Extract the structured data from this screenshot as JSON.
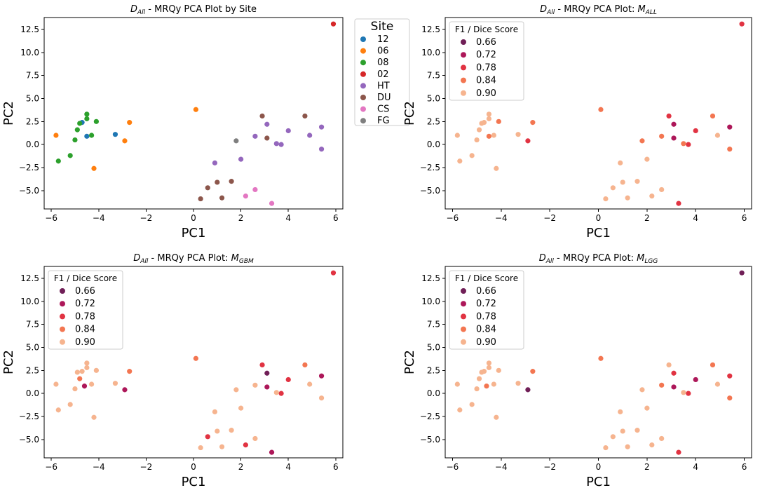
{
  "chart_data": [
    {
      "type": "scatter",
      "title_main": "D",
      "title_sub": "All",
      "title_rest": " - MRQy PCA Plot by Site",
      "title_var": "",
      "title_var_sub": "",
      "xlabel": "PC1",
      "ylabel": "PC2",
      "xlim": [
        -6.3,
        6.3
      ],
      "ylim": [
        -7.0,
        13.8
      ],
      "xticks": [
        -6,
        -4,
        -2,
        0,
        2,
        4,
        6
      ],
      "yticks": [
        -5.0,
        -2.5,
        0.0,
        2.5,
        5.0,
        7.5,
        10.0,
        12.5
      ],
      "ytick_labels": [
        "−5.0",
        "−2.5",
        "0.0",
        "2.5",
        "5.0",
        "7.5",
        "10.0",
        "12.5"
      ],
      "xtick_labels": [
        "−6",
        "−4",
        "−2",
        "0",
        "2",
        "4",
        "6"
      ],
      "legend": {
        "title": "Site",
        "placement": "outside-right",
        "entries": [
          {
            "label": "12",
            "color": "#1f77b4"
          },
          {
            "label": "06",
            "color": "#ff7f0e"
          },
          {
            "label": "08",
            "color": "#2ca02c"
          },
          {
            "label": "02",
            "color": "#d62728"
          },
          {
            "label": "HT",
            "color": "#9467bd"
          },
          {
            "label": "DU",
            "color": "#8c564b"
          },
          {
            "label": "CS",
            "color": "#e377c2"
          },
          {
            "label": "FG",
            "color": "#7f7f7f"
          }
        ]
      },
      "series": [
        {
          "name": "12",
          "color": "#1f77b4",
          "x": [
            -4.5,
            -3.3,
            -4.7
          ],
          "y": [
            0.9,
            1.1,
            2.4
          ]
        },
        {
          "name": "06",
          "color": "#ff7f0e",
          "x": [
            -5.8,
            -4.2,
            -2.9,
            -2.7,
            0.1
          ],
          "y": [
            1.0,
            -2.6,
            0.4,
            2.4,
            3.8
          ]
        },
        {
          "name": "08",
          "color": "#2ca02c",
          "x": [
            -5.7,
            -5.2,
            -5.0,
            -4.9,
            -4.8,
            -4.5,
            -4.5,
            -4.3,
            -4.1
          ],
          "y": [
            -1.8,
            -1.2,
            0.5,
            1.6,
            2.3,
            2.8,
            3.3,
            1.0,
            2.5
          ]
        },
        {
          "name": "02",
          "color": "#d62728",
          "x": [
            5.9
          ],
          "y": [
            13.1
          ]
        },
        {
          "name": "HT",
          "color": "#9467bd",
          "x": [
            0.9,
            2.0,
            2.6,
            3.1,
            3.5,
            3.7,
            4.0,
            4.9,
            5.4,
            5.4
          ],
          "y": [
            -2.0,
            -1.6,
            0.9,
            2.2,
            0.1,
            0.0,
            1.5,
            1.0,
            1.9,
            -0.5
          ]
        },
        {
          "name": "DU",
          "color": "#8c564b",
          "x": [
            0.3,
            0.6,
            1.0,
            1.2,
            1.6,
            2.9,
            3.1,
            4.7
          ],
          "y": [
            -5.9,
            -4.7,
            -4.1,
            -5.8,
            -4.0,
            3.1,
            0.7,
            3.1
          ]
        },
        {
          "name": "CS",
          "color": "#e377c2",
          "x": [
            2.2,
            2.6,
            3.3
          ],
          "y": [
            -5.6,
            -4.9,
            -6.4
          ]
        },
        {
          "name": "FG",
          "color": "#7f7f7f",
          "x": [
            1.8
          ],
          "y": [
            0.4
          ]
        }
      ]
    },
    {
      "type": "scatter",
      "title_main": "D",
      "title_sub": "All",
      "title_rest": " - MRQy PCA Plot: ",
      "title_var": "M",
      "title_var_sub": "ALL",
      "xlabel": "PC1",
      "ylabel": "PC2",
      "xlim": [
        -6.3,
        6.3
      ],
      "ylim": [
        -7.0,
        13.8
      ],
      "xticks": [
        -6,
        -4,
        -2,
        0,
        2,
        4,
        6
      ],
      "yticks": [
        -5.0,
        -2.5,
        0.0,
        2.5,
        5.0,
        7.5,
        10.0,
        12.5
      ],
      "ytick_labels": [
        "−5.0",
        "−2.5",
        "0.0",
        "2.5",
        "5.0",
        "7.5",
        "10.0",
        "12.5"
      ],
      "xtick_labels": [
        "−6",
        "−4",
        "−2",
        "0",
        "2",
        "4",
        "6"
      ],
      "legend": {
        "title": "F1 / Dice Score",
        "placement": "top-left",
        "entries": [
          {
            "label": "0.66",
            "color": "#701f57"
          },
          {
            "label": "0.72",
            "color": "#ad1759"
          },
          {
            "label": "0.78",
            "color": "#e13342"
          },
          {
            "label": "0.84",
            "color": "#f37651"
          },
          {
            "label": "0.90",
            "color": "#f6b48f"
          }
        ]
      },
      "series": [
        {
          "name": "0.72",
          "color": "#ad1759",
          "x": [
            3.1,
            3.1,
            5.4
          ],
          "y": [
            2.2,
            0.7,
            1.9
          ]
        },
        {
          "name": "0.78",
          "color": "#e13342",
          "x": [
            5.9,
            -2.9,
            3.3,
            4.0,
            3.7,
            2.9
          ],
          "y": [
            13.1,
            0.4,
            -6.4,
            1.5,
            0.0,
            3.1
          ]
        },
        {
          "name": "0.84",
          "color": "#f37651",
          "x": [
            -2.7,
            0.1,
            -4.5,
            -4.1,
            1.8,
            2.6,
            4.7,
            5.4,
            3.5
          ],
          "y": [
            2.4,
            3.8,
            0.9,
            2.5,
            0.4,
            0.9,
            3.1,
            -0.5,
            0.1
          ]
        },
        {
          "name": "0.90",
          "color": "#f6b48f",
          "x": [
            -5.8,
            -5.7,
            -5.2,
            -5.0,
            -4.9,
            -4.8,
            -4.7,
            -4.5,
            -4.5,
            -4.3,
            -4.2,
            -3.3,
            0.9,
            2.0,
            4.9,
            0.3,
            0.6,
            1.0,
            1.2,
            1.6,
            2.2,
            2.6
          ],
          "y": [
            1.0,
            -1.8,
            -1.2,
            0.5,
            1.6,
            2.3,
            2.4,
            2.8,
            3.3,
            1.0,
            -2.6,
            1.1,
            -2.0,
            -1.6,
            1.0,
            -5.9,
            -4.7,
            -4.1,
            -5.8,
            -4.0,
            -5.6,
            -4.9
          ]
        }
      ]
    },
    {
      "type": "scatter",
      "title_main": "D",
      "title_sub": "All",
      "title_rest": " - MRQy PCA Plot: ",
      "title_var": "M",
      "title_var_sub": "GBM",
      "xlabel": "PC1",
      "ylabel": "PC2",
      "xlim": [
        -6.3,
        6.3
      ],
      "ylim": [
        -7.0,
        13.8
      ],
      "xticks": [
        -6,
        -4,
        -2,
        0,
        2,
        4,
        6
      ],
      "yticks": [
        -5.0,
        -2.5,
        0.0,
        2.5,
        5.0,
        7.5,
        10.0,
        12.5
      ],
      "ytick_labels": [
        "−5.0",
        "−2.5",
        "0.0",
        "2.5",
        "5.0",
        "7.5",
        "10.0",
        "12.5"
      ],
      "xtick_labels": [
        "−6",
        "−4",
        "−2",
        "0",
        "2",
        "4",
        "6"
      ],
      "legend": {
        "title": "F1 / Dice Score",
        "placement": "top-left",
        "entries": [
          {
            "label": "0.66",
            "color": "#701f57"
          },
          {
            "label": "0.72",
            "color": "#ad1759"
          },
          {
            "label": "0.78",
            "color": "#e13342"
          },
          {
            "label": "0.84",
            "color": "#f37651"
          },
          {
            "label": "0.90",
            "color": "#f6b48f"
          }
        ]
      },
      "series": [
        {
          "name": "0.66",
          "color": "#701f57",
          "x": [
            3.1
          ],
          "y": [
            2.2
          ]
        },
        {
          "name": "0.72",
          "color": "#ad1759",
          "x": [
            -4.6,
            -2.9,
            3.3,
            5.4,
            3.1
          ],
          "y": [
            0.8,
            0.4,
            -6.4,
            1.9,
            0.7
          ]
        },
        {
          "name": "0.78",
          "color": "#e13342",
          "x": [
            5.9,
            2.9,
            0.6,
            2.2,
            4.0,
            3.7
          ],
          "y": [
            13.1,
            3.1,
            -4.7,
            -5.6,
            1.5,
            0.0
          ]
        },
        {
          "name": "0.84",
          "color": "#f37651",
          "x": [
            -2.7,
            -4.8,
            4.7,
            0.1
          ],
          "y": [
            2.4,
            1.6,
            3.1,
            3.8
          ]
        },
        {
          "name": "0.90",
          "color": "#f6b48f",
          "x": [
            -5.8,
            -5.7,
            -5.2,
            -5.0,
            -4.9,
            -4.7,
            -4.5,
            -4.5,
            -4.3,
            -4.2,
            -4.1,
            -3.3,
            0.9,
            2.0,
            1.8,
            2.6,
            3.5,
            4.9,
            5.4,
            0.3,
            1.0,
            1.2,
            1.6,
            2.6
          ],
          "y": [
            1.0,
            -1.8,
            -1.2,
            0.5,
            2.3,
            2.4,
            2.8,
            3.3,
            1.0,
            -2.6,
            2.5,
            1.1,
            -2.0,
            -1.6,
            0.4,
            0.9,
            0.1,
            1.0,
            -0.5,
            -5.9,
            -4.1,
            -5.8,
            -4.0,
            -4.9
          ]
        }
      ]
    },
    {
      "type": "scatter",
      "title_main": "D",
      "title_sub": "All",
      "title_rest": " - MRQy PCA Plot: ",
      "title_var": "M",
      "title_var_sub": "LGG",
      "xlabel": "PC1",
      "ylabel": "PC2",
      "xlim": [
        -6.3,
        6.3
      ],
      "ylim": [
        -7.0,
        13.8
      ],
      "xticks": [
        -6,
        -4,
        -2,
        0,
        2,
        4,
        6
      ],
      "yticks": [
        -5.0,
        -2.5,
        0.0,
        2.5,
        5.0,
        7.5,
        10.0,
        12.5
      ],
      "ytick_labels": [
        "−5.0",
        "−2.5",
        "0.0",
        "2.5",
        "5.0",
        "7.5",
        "10.0",
        "12.5"
      ],
      "xtick_labels": [
        "−6",
        "−4",
        "−2",
        "0",
        "2",
        "4",
        "6"
      ],
      "legend": {
        "title": "F1 / Dice Score",
        "placement": "top-left",
        "entries": [
          {
            "label": "0.66",
            "color": "#701f57"
          },
          {
            "label": "0.72",
            "color": "#ad1759"
          },
          {
            "label": "0.78",
            "color": "#e13342"
          },
          {
            "label": "0.84",
            "color": "#f37651"
          },
          {
            "label": "0.90",
            "color": "#f6b48f"
          }
        ]
      },
      "series": [
        {
          "name": "0.66",
          "color": "#701f57",
          "x": [
            5.9,
            -2.9
          ],
          "y": [
            13.1,
            0.4
          ]
        },
        {
          "name": "0.72",
          "color": "#ad1759",
          "x": [
            3.1,
            4.0
          ],
          "y": [
            0.7,
            1.5
          ]
        },
        {
          "name": "0.78",
          "color": "#e13342",
          "x": [
            3.1,
            3.3,
            5.4,
            3.7
          ],
          "y": [
            2.2,
            -6.4,
            1.9,
            0.0
          ]
        },
        {
          "name": "0.84",
          "color": "#f37651",
          "x": [
            -4.6,
            -2.7,
            0.1,
            4.7,
            5.4,
            2.6
          ],
          "y": [
            0.8,
            2.4,
            3.8,
            3.1,
            -0.5,
            0.9
          ]
        },
        {
          "name": "0.90",
          "color": "#f6b48f",
          "x": [
            -5.8,
            -5.7,
            -5.2,
            -5.0,
            -4.9,
            -4.8,
            -4.7,
            -4.5,
            -4.5,
            -4.3,
            -4.2,
            -4.1,
            -3.3,
            0.9,
            2.0,
            1.8,
            2.9,
            3.5,
            4.9,
            0.3,
            0.6,
            1.0,
            1.2,
            1.6,
            2.2,
            2.6
          ],
          "y": [
            1.0,
            -1.8,
            -1.2,
            0.5,
            1.6,
            2.3,
            2.4,
            2.8,
            3.3,
            1.0,
            -2.6,
            2.5,
            1.1,
            -2.0,
            -1.6,
            0.4,
            3.1,
            0.1,
            1.0,
            -5.9,
            -4.7,
            -4.1,
            -5.8,
            -4.0,
            -5.6,
            -4.9
          ]
        }
      ]
    }
  ]
}
